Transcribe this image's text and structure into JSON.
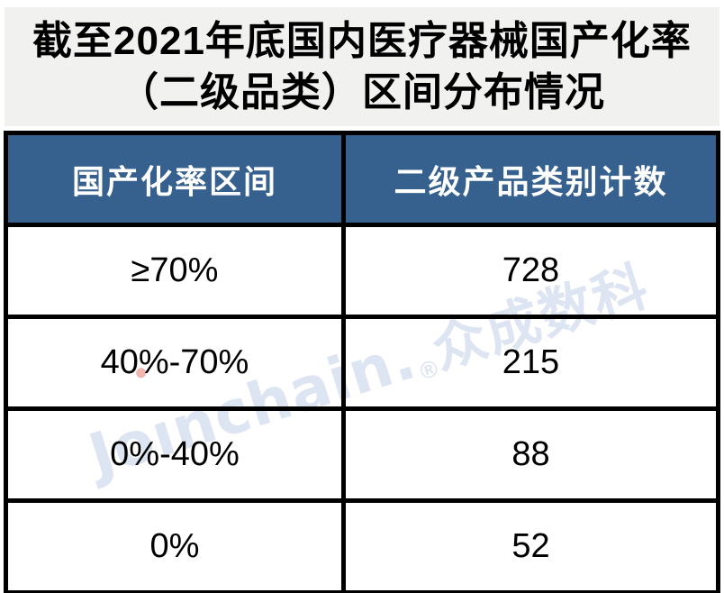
{
  "title": {
    "line1": "截至2021年底国内医疗器械国产化率",
    "line2": "（二级品类）区间分布情况"
  },
  "table": {
    "columns": [
      "国产化率区间",
      "二级产品类别计数"
    ],
    "rows": [
      {
        "range": "≥70%",
        "count": "728"
      },
      {
        "range": "40%-70%",
        "count": "215"
      },
      {
        "range": "0%-40%",
        "count": "88"
      },
      {
        "range": "0%",
        "count": "52"
      }
    ]
  },
  "watermark": {
    "latin_prefix": "Jo",
    "latin_i_dotless": "ı",
    "latin_suffix": "nchain.",
    "registered_mark": "®",
    "cjk": "众成数科"
  },
  "colors": {
    "page_bg": "#ffffff",
    "title_bg": "#f1f1f0",
    "title_text": "#000000",
    "header_bg": "#36618e",
    "header_text": "#ffffff",
    "border": "#000000",
    "cell_text": "#000000",
    "watermark": "#dde4f2",
    "watermark_dot": "#f0b5ae"
  },
  "chart_data": {
    "type": "table",
    "title": "截至2021年底国内医疗器械国产化率（二级品类）区间分布情况",
    "columns": [
      "国产化率区间",
      "二级产品类别计数"
    ],
    "categories": [
      "≥70%",
      "40%-70%",
      "0%-40%",
      "0%"
    ],
    "values": [
      728,
      215,
      88,
      52
    ]
  }
}
